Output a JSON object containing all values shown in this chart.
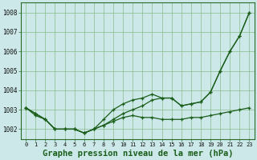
{
  "x": [
    0,
    1,
    2,
    3,
    4,
    5,
    6,
    7,
    8,
    9,
    10,
    11,
    12,
    13,
    14,
    15,
    16,
    17,
    18,
    19,
    20,
    21,
    22,
    23
  ],
  "line1": [
    1003.1,
    1002.8,
    1002.5,
    1002.0,
    1002.0,
    1002.0,
    1001.8,
    1002.0,
    1002.2,
    1002.5,
    1002.8,
    1003.0,
    1003.2,
    1003.5,
    1003.6,
    1003.6,
    1003.2,
    1003.3,
    1003.4,
    1003.9,
    1005.0,
    1006.0,
    1006.8,
    1008.0
  ],
  "line2": [
    1003.1,
    1002.8,
    1002.5,
    1002.0,
    1002.0,
    1002.0,
    1001.8,
    1002.0,
    1002.5,
    1003.0,
    1003.3,
    1003.5,
    1003.6,
    1003.8,
    1003.6,
    1003.6,
    1003.2,
    1003.3,
    1003.4,
    1003.9,
    1005.0,
    1006.0,
    1006.8,
    1008.0
  ],
  "line3": [
    1003.1,
    1002.7,
    1002.5,
    1002.0,
    1002.0,
    1002.0,
    1001.8,
    1002.0,
    1002.2,
    1002.4,
    1002.6,
    1002.7,
    1002.6,
    1002.6,
    1002.5,
    1002.5,
    1002.5,
    1002.6,
    1002.6,
    1002.7,
    1002.8,
    1002.9,
    1003.0,
    1003.1
  ],
  "bg_color": "#cce8e8",
  "grid_color": "#88bb88",
  "line_color": "#1a5e1a",
  "title": "Graphe pression niveau de la mer (hPa)",
  "ylim": [
    1001.5,
    1008.5
  ],
  "yticks": [
    1002,
    1003,
    1004,
    1005,
    1006,
    1007,
    1008
  ],
  "title_fontsize": 7.5
}
